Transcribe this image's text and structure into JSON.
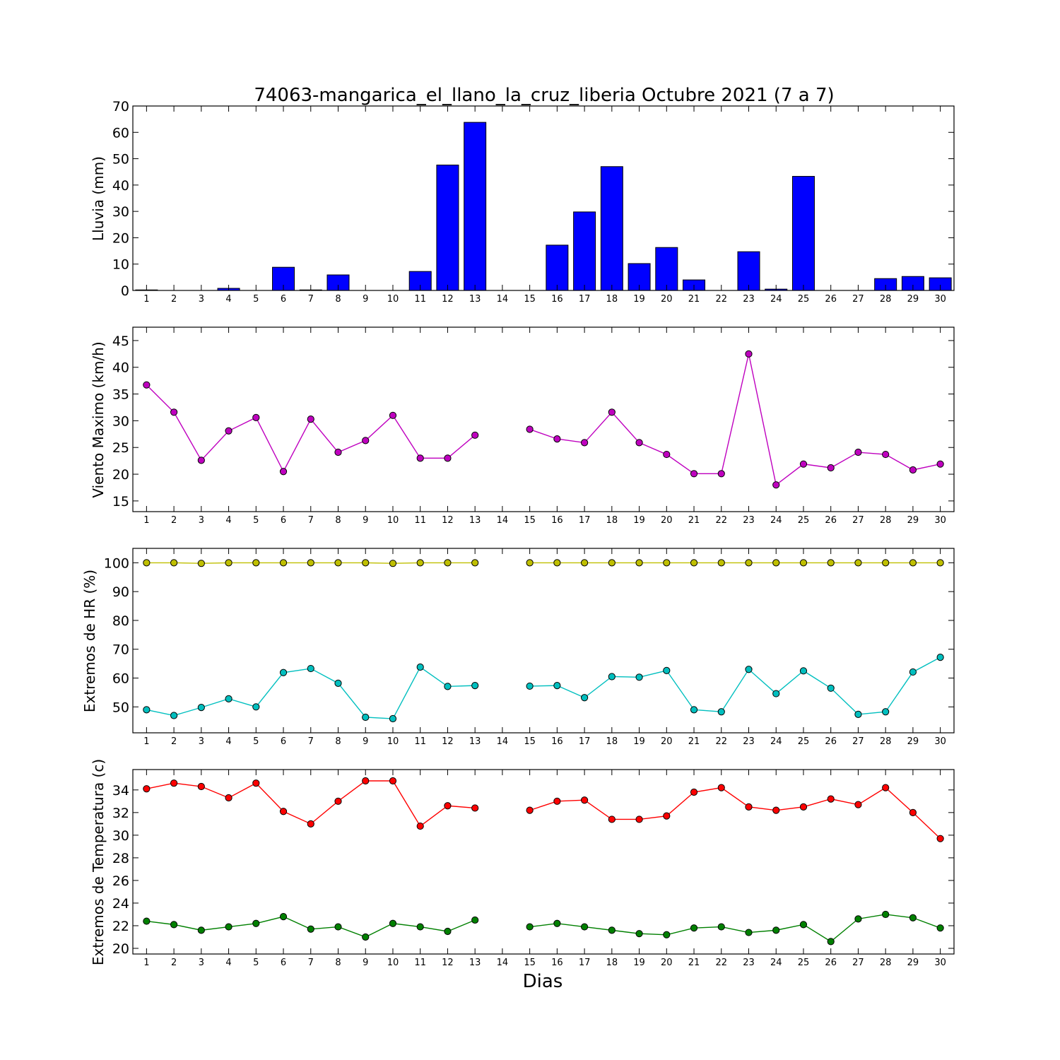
{
  "title": "74063-mangarica_el_llano_la_cruz_liberia Octubre 2021  (7 a 7)",
  "xlabel": "Dias",
  "colors": {
    "rain": "#0000ff",
    "wind": "#bf00bf",
    "hr_max": "#bfbf00",
    "hr_min": "#00bfbf",
    "temp_max": "#ff0000",
    "temp_min": "#008000"
  },
  "chart_data": [
    {
      "type": "bar",
      "ylabel": "Lluvia (mm)",
      "ylim": [
        0,
        70
      ],
      "yticks": [
        0,
        10,
        20,
        30,
        40,
        50,
        60,
        70
      ],
      "categories": [
        1,
        2,
        3,
        4,
        5,
        6,
        7,
        8,
        9,
        10,
        11,
        12,
        13,
        14,
        15,
        16,
        17,
        18,
        19,
        20,
        21,
        22,
        23,
        24,
        25,
        26,
        27,
        28,
        29,
        30
      ],
      "values": [
        0.2,
        0,
        0,
        0.8,
        0,
        8.8,
        0.2,
        5.9,
        0,
        0,
        7.2,
        47.6,
        63.8,
        0,
        0,
        17.2,
        29.8,
        47.0,
        10.2,
        16.3,
        4.0,
        0,
        14.7,
        0.5,
        43.3,
        0,
        0,
        4.5,
        5.3,
        4.8
      ]
    },
    {
      "type": "line",
      "ylabel": "Viento Maximo (km/h)",
      "ylim": [
        13,
        47.5
      ],
      "yticks": [
        15,
        20,
        25,
        30,
        35,
        40,
        45
      ],
      "x": [
        1,
        2,
        3,
        4,
        5,
        6,
        7,
        8,
        9,
        10,
        11,
        12,
        13,
        14,
        15,
        16,
        17,
        18,
        19,
        20,
        21,
        22,
        23,
        24,
        25,
        26,
        27,
        28,
        29,
        30
      ],
      "series": [
        {
          "values": [
            36.7,
            31.6,
            22.6,
            28.1,
            30.6,
            20.5,
            30.3,
            24.1,
            26.3,
            31.0,
            23.0,
            23.0,
            27.3,
            null,
            28.4,
            26.6,
            25.9,
            31.6,
            25.9,
            23.7,
            20.1,
            20.1,
            42.5,
            18.0,
            21.9,
            21.2,
            24.1,
            23.7,
            20.8,
            21.9
          ]
        }
      ]
    },
    {
      "type": "line",
      "ylabel": "Extremos de HR (%)",
      "ylim": [
        41,
        105
      ],
      "yticks": [
        50,
        60,
        70,
        80,
        90,
        100
      ],
      "x": [
        1,
        2,
        3,
        4,
        5,
        6,
        7,
        8,
        9,
        10,
        11,
        12,
        13,
        14,
        15,
        16,
        17,
        18,
        19,
        20,
        21,
        22,
        23,
        24,
        25,
        26,
        27,
        28,
        29,
        30
      ],
      "series": [
        {
          "values": [
            100,
            100,
            99.8,
            100,
            100,
            100,
            100,
            100,
            100,
            99.8,
            100,
            100,
            100,
            null,
            100,
            100,
            100,
            100,
            100,
            100,
            100,
            100,
            100,
            100,
            100,
            100,
            100,
            100,
            100,
            100
          ]
        },
        {
          "values": [
            49.0,
            47.0,
            49.8,
            52.8,
            50.0,
            61.9,
            63.3,
            58.2,
            46.4,
            45.9,
            63.8,
            57.1,
            57.4,
            null,
            57.2,
            57.4,
            53.2,
            60.5,
            60.3,
            62.6,
            49.0,
            48.3,
            63.0,
            54.6,
            62.5,
            56.5,
            47.4,
            48.3,
            62.1,
            67.2
          ]
        }
      ]
    },
    {
      "type": "line",
      "ylabel": "Extremos de Temperatura (c)",
      "ylim": [
        19.5,
        35.8
      ],
      "yticks": [
        20,
        22,
        24,
        26,
        28,
        30,
        32,
        34
      ],
      "x": [
        1,
        2,
        3,
        4,
        5,
        6,
        7,
        8,
        9,
        10,
        11,
        12,
        13,
        14,
        15,
        16,
        17,
        18,
        19,
        20,
        21,
        22,
        23,
        24,
        25,
        26,
        27,
        28,
        29,
        30
      ],
      "series": [
        {
          "values": [
            34.1,
            34.6,
            34.3,
            33.3,
            34.6,
            32.1,
            31.0,
            33.0,
            34.8,
            34.8,
            30.8,
            32.6,
            32.4,
            null,
            32.2,
            33.0,
            33.1,
            31.4,
            31.4,
            31.7,
            33.8,
            34.2,
            32.5,
            32.2,
            32.5,
            33.2,
            32.7,
            34.2,
            32.0,
            29.7
          ]
        },
        {
          "values": [
            22.4,
            22.1,
            21.6,
            21.9,
            22.2,
            22.8,
            21.7,
            21.9,
            21.0,
            22.2,
            21.9,
            21.5,
            22.5,
            null,
            21.9,
            22.2,
            21.9,
            21.6,
            21.3,
            21.2,
            21.8,
            21.9,
            21.4,
            21.6,
            22.1,
            20.6,
            22.6,
            23.0,
            22.7,
            21.8
          ]
        }
      ]
    }
  ]
}
